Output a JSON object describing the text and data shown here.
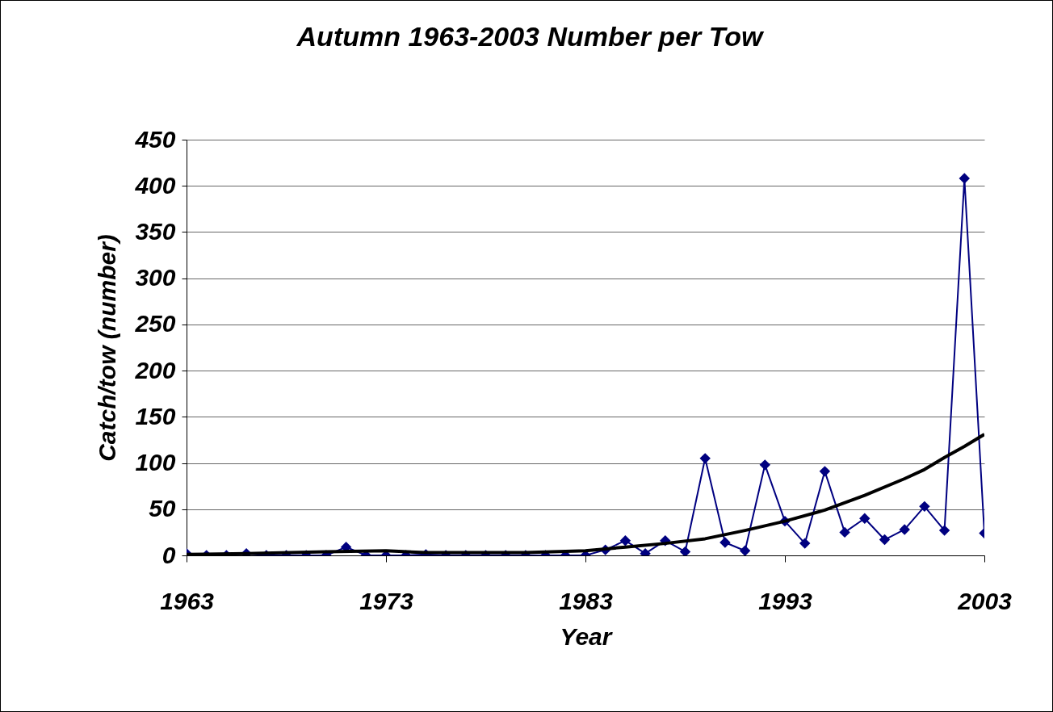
{
  "chart_data": {
    "type": "line",
    "title": "Autumn 1963-2003 Number per Tow",
    "xlabel": "Year",
    "ylabel": "Catch/tow (number)",
    "x": [
      1963,
      1964,
      1965,
      1966,
      1967,
      1968,
      1969,
      1970,
      1971,
      1972,
      1973,
      1974,
      1975,
      1976,
      1977,
      1978,
      1979,
      1980,
      1981,
      1982,
      1983,
      1984,
      1985,
      1986,
      1987,
      1988,
      1989,
      1990,
      1991,
      1992,
      1993,
      1994,
      1995,
      1996,
      1997,
      1998,
      1999,
      2000,
      2001,
      2002,
      2003
    ],
    "series": [
      {
        "color": "#000080",
        "marker": "diamond",
        "values": [
          2,
          0,
          0,
          2,
          0,
          0,
          0,
          0,
          9,
          0,
          0,
          0,
          1,
          0,
          0,
          0,
          0,
          0,
          0,
          0,
          0,
          6,
          16,
          2,
          16,
          4,
          105,
          14,
          5,
          98,
          37,
          13,
          91,
          25,
          40,
          17,
          28,
          53,
          27,
          408,
          24
        ]
      },
      {
        "type": "line",
        "color": "#000000",
        "marker": "none",
        "x": [
          1963,
          1966,
          1970,
          1973,
          1975,
          1980,
          1983,
          1985,
          1987,
          1989,
          1991,
          1993,
          1995,
          1997,
          1999,
          2000,
          2001,
          2002,
          2003
        ],
        "values": [
          1,
          2,
          4,
          5,
          3,
          3,
          5,
          9,
          13,
          18,
          27,
          37,
          49,
          65,
          83,
          93,
          106,
          118,
          131
        ]
      }
    ],
    "xlim": [
      1963,
      2003
    ],
    "xticks": [
      1963,
      1973,
      1983,
      1993,
      2003
    ],
    "ylim": [
      0,
      450
    ],
    "yticks": [
      0,
      50,
      100,
      150,
      200,
      250,
      300,
      350,
      400,
      450
    ],
    "grid": "y"
  }
}
